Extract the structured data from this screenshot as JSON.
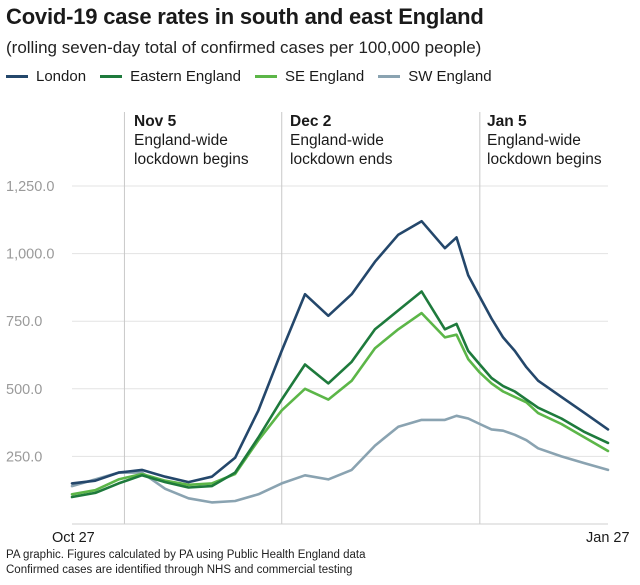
{
  "chart_data": {
    "type": "line",
    "title": "Covid-19 case rates in south and east England",
    "subtitle": "(rolling seven-day total of confirmed cases per 100,000 people)",
    "xlabel": "",
    "ylabel": "",
    "ylim": [
      0,
      1250
    ],
    "yticks": [
      250,
      500,
      750,
      1000,
      1250
    ],
    "ytick_labels": [
      "250.0",
      "500.0",
      "750.0",
      "1,000.0",
      "1,250.0"
    ],
    "x_tick_labels": [
      "Oct 27",
      "Jan 27"
    ],
    "x_count": 93,
    "x": [
      0,
      4,
      8,
      12,
      16,
      20,
      24,
      28,
      32,
      36,
      40,
      44,
      48,
      52,
      56,
      60,
      64,
      66,
      68,
      70,
      72,
      74,
      76,
      78,
      80,
      84,
      88,
      92
    ],
    "series": [
      {
        "name": "London",
        "color": "#24476b",
        "values": [
          150,
          160,
          190,
          200,
          175,
          155,
          175,
          245,
          420,
          640,
          850,
          770,
          850,
          970,
          1070,
          1120,
          1020,
          1060,
          920,
          840,
          760,
          690,
          640,
          580,
          530,
          470,
          410,
          350
        ]
      },
      {
        "name": "Eastern England",
        "color": "#1e7a3c",
        "values": [
          100,
          115,
          150,
          180,
          155,
          135,
          140,
          190,
          320,
          460,
          590,
          520,
          600,
          720,
          790,
          860,
          720,
          740,
          640,
          590,
          540,
          510,
          490,
          460,
          430,
          390,
          340,
          300
        ]
      },
      {
        "name": "SE England",
        "color": "#5cb648",
        "values": [
          110,
          125,
          165,
          185,
          160,
          145,
          150,
          185,
          310,
          420,
          500,
          460,
          530,
          650,
          720,
          780,
          690,
          700,
          610,
          560,
          520,
          490,
          470,
          450,
          410,
          370,
          320,
          270
        ]
      },
      {
        "name": "SW England",
        "color": "#8aa3b1",
        "values": [
          140,
          165,
          190,
          190,
          130,
          95,
          80,
          85,
          110,
          150,
          180,
          165,
          200,
          290,
          360,
          385,
          385,
          400,
          390,
          370,
          350,
          345,
          330,
          310,
          280,
          250,
          225,
          200
        ]
      }
    ],
    "annotations": [
      {
        "x": 9,
        "date": "Nov 5",
        "text": [
          "England-wide",
          "lockdown begins"
        ]
      },
      {
        "x": 36,
        "date": "Dec 2",
        "text": [
          "England-wide",
          "lockdown ends"
        ]
      },
      {
        "x": 70,
        "date": "Jan 5",
        "text": [
          "England-wide",
          "lockdown begins"
        ]
      }
    ]
  },
  "footer": {
    "line1": "PA graphic. Figures calculated by PA using Public Health England data",
    "line2": "Confirmed cases are identified through NHS and commercial testing"
  }
}
